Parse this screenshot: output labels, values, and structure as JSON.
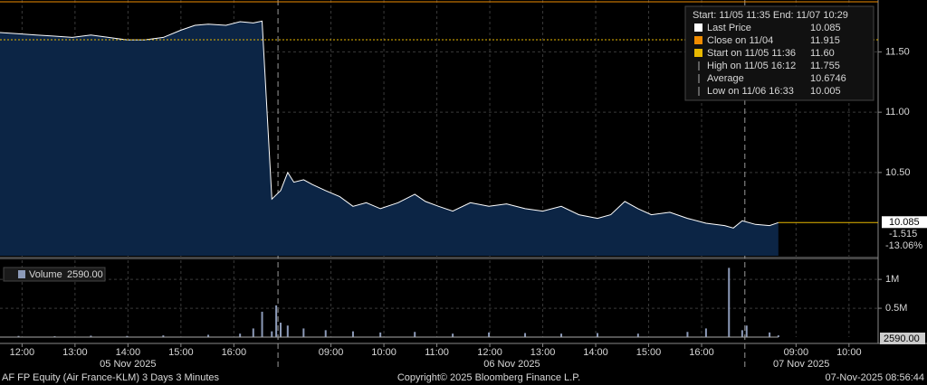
{
  "chart_data": [
    {
      "type": "area",
      "x": [
        0,
        21,
        41,
        62,
        82,
        103,
        123,
        144,
        164,
        185,
        205,
        221,
        236,
        256,
        272,
        287,
        297,
        308,
        318,
        326,
        333,
        344,
        354,
        369,
        385,
        400,
        415,
        431,
        451,
        470,
        482,
        497,
        513,
        533,
        554,
        574,
        595,
        615,
        636,
        656,
        677,
        692,
        708,
        723,
        738,
        759,
        779,
        800,
        821,
        831,
        841,
        856,
        872,
        882
      ],
      "series": [
        {
          "name": "Last Price",
          "color": "#ffffff",
          "fill": "#0c2545",
          "values": [
            11.66,
            11.65,
            11.64,
            11.63,
            11.62,
            11.64,
            11.62,
            11.6,
            11.6,
            11.62,
            11.68,
            11.72,
            11.73,
            11.72,
            11.75,
            11.74,
            11.755,
            10.28,
            10.35,
            10.5,
            10.42,
            10.44,
            10.4,
            10.35,
            10.3,
            10.22,
            10.25,
            10.2,
            10.25,
            10.32,
            10.26,
            10.22,
            10.18,
            10.25,
            10.22,
            10.24,
            10.2,
            10.18,
            10.22,
            10.15,
            10.12,
            10.15,
            10.26,
            10.2,
            10.15,
            10.17,
            10.12,
            10.08,
            10.06,
            10.04,
            10.1,
            10.07,
            10.06,
            10.085
          ]
        }
      ],
      "xlim": [
        0,
        995
      ],
      "xticks": [
        {
          "value": 25,
          "label": "12:00"
        },
        {
          "value": 85,
          "label": "13:00"
        },
        {
          "value": 145,
          "label": "14:00"
        },
        {
          "value": 205,
          "label": "15:00"
        },
        {
          "value": 265,
          "label": "16:00"
        },
        {
          "value": 375,
          "label": "09:00"
        },
        {
          "value": 435,
          "label": "10:00"
        },
        {
          "value": 495,
          "label": "11:00"
        },
        {
          "value": 555,
          "label": "12:00"
        },
        {
          "value": 615,
          "label": "13:00"
        },
        {
          "value": 675,
          "label": "14:00"
        },
        {
          "value": 735,
          "label": "15:00"
        },
        {
          "value": 795,
          "label": "16:00"
        },
        {
          "value": 902,
          "label": "09:00"
        },
        {
          "value": 962,
          "label": "10:00"
        }
      ],
      "date_labels": [
        {
          "value": 145,
          "label": "05 Nov 2025"
        },
        {
          "value": 580,
          "label": "06 Nov 2025"
        },
        {
          "value": 908,
          "label": "07 Nov 2025"
        }
      ],
      "separators": [
        315,
        844
      ],
      "ylim": [
        9.81,
        11.93
      ],
      "yticks": [
        {
          "value": 10.5,
          "label": "10.50"
        },
        {
          "value": 11,
          "label": "11.00"
        },
        {
          "value": 11.5,
          "label": "11.50"
        }
      ],
      "grid": true,
      "ref_lines": [
        {
          "value": 11.915,
          "color": "#f08c00",
          "style": "solid"
        },
        {
          "value": 11.6,
          "color": "#e8b800",
          "style": "dotted"
        }
      ],
      "last_line": {
        "value": 10.085,
        "color": "#e8b800"
      },
      "last_labels": [
        "10.085",
        "-1.515",
        "-13.06%"
      ],
      "legend": {
        "header": "Start: 11/05 11:35 End: 11/07 10:29",
        "entries": [
          {
            "label": "Last Price",
            "value": "10.085"
          },
          {
            "label": "Close on 11/04",
            "value": "11.915"
          },
          {
            "label": "Start on 11/05 11:36",
            "value": "11.60"
          },
          {
            "label": "High on 11/05 16:12",
            "value": "11.755"
          },
          {
            "label": "Average",
            "value": "10.6746"
          },
          {
            "label": "Low on 11/06 16:33",
            "value": "10.005"
          }
        ]
      }
    },
    {
      "type": "bar",
      "x": [
        21,
        62,
        103,
        144,
        185,
        236,
        272,
        287,
        297,
        308,
        313,
        318,
        326,
        344,
        369,
        400,
        431,
        470,
        513,
        554,
        595,
        636,
        677,
        723,
        779,
        800,
        826,
        841,
        846,
        872,
        882
      ],
      "series": [
        {
          "name": "Volume",
          "color": "#8c9ab8",
          "values": [
            20000,
            15000,
            25000,
            20000,
            30000,
            40000,
            60000,
            150000,
            440000,
            100000,
            550000,
            250000,
            200000,
            150000,
            120000,
            100000,
            80000,
            90000,
            60000,
            80000,
            70000,
            60000,
            70000,
            60000,
            90000,
            150000,
            1200000,
            120000,
            200000,
            80000,
            30000
          ]
        }
      ],
      "legend_value": "2590.00",
      "xlim": [
        0,
        995
      ],
      "ylim": [
        0,
        1300000
      ],
      "yticks": [
        {
          "value": 500000,
          "label": "0.5M"
        },
        {
          "value": 1000000,
          "label": "1M"
        }
      ],
      "grid": true
    }
  ],
  "footer": {
    "left": "AF FP Equity (Air France-KLM) 3 Days 3 Minutes",
    "center": "Copyright© 2025 Bloomberg Finance L.P.",
    "right": "07-Nov-2025 08:56:44"
  }
}
